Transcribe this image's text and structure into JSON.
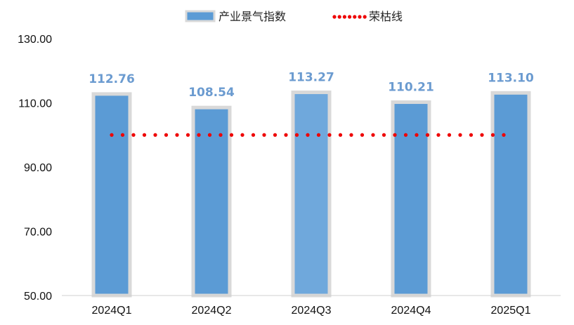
{
  "chart_data": {
    "type": "bar",
    "categories": [
      "2024Q1",
      "2024Q2",
      "2024Q3",
      "2024Q4",
      "2025Q1"
    ],
    "series": [
      {
        "name": "产业景气指数",
        "values": [
          112.76,
          108.54,
          113.27,
          110.21,
          113.1
        ],
        "data_labels": [
          "112.76",
          "108.54",
          "113.27",
          "110.21",
          "113.10"
        ]
      }
    ],
    "reference_line": {
      "name": "荣枯线",
      "value": 100,
      "style": "dotted"
    },
    "y_ticks": [
      "50.00",
      "70.00",
      "90.00",
      "110.00",
      "130.00"
    ],
    "ylim": [
      50,
      130
    ],
    "grid": false,
    "legend_position": "top",
    "colors": {
      "bar": "#5b9bd5",
      "bar_highlight": "#6fa8dc",
      "bar_border": "#d9d9d9",
      "reference_line": "#ee0000",
      "data_label": "#6b9bd0",
      "axis": "#d0d0d0"
    }
  }
}
